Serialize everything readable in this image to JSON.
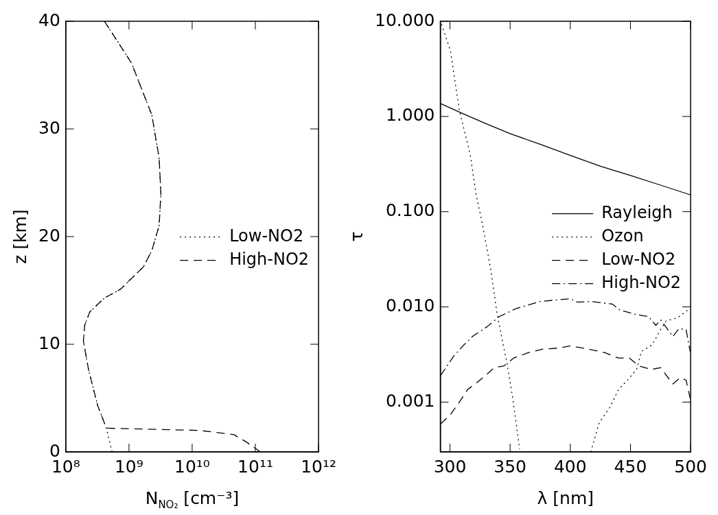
{
  "chart_data": [
    {
      "type": "line",
      "xlabel": "N$_{NO₂}$ [cm⁻³]",
      "ylabel": "z [km]",
      "log": "x",
      "xlim": [
        100000000,
        1000000000000
      ],
      "xticks": [
        {
          "value": 100000000,
          "label": "10⁸"
        },
        {
          "value": 1000000000,
          "label": "10⁹"
        },
        {
          "value": 10000000000,
          "label": "10¹⁰"
        },
        {
          "value": 100000000000,
          "label": "10¹¹"
        },
        {
          "value": 1000000000000,
          "label": "10¹²"
        }
      ],
      "ylim": [
        0,
        40
      ],
      "yticks": [
        0,
        10,
        20,
        30,
        40
      ],
      "grid": false,
      "legend": "right",
      "series": [
        {
          "name": "Low-NO2",
          "color": "#000000",
          "line_style": "dotted",
          "x": [
            410000000,
            1100000000,
            2300000000,
            3000000000,
            3200000000,
            3000000000,
            2300000000,
            1700000000,
            730000000,
            410000000,
            240000000,
            200000000,
            190000000,
            230000000,
            320000000,
            440000000,
            540000000
          ],
          "values": [
            40,
            36.1,
            31.3,
            27.3,
            24,
            21,
            18.7,
            17.2,
            15.1,
            14.3,
            13,
            11.8,
            10.3,
            7.6,
            4.3,
            2.2,
            0
          ]
        },
        {
          "name": "High-NO2",
          "color": "#000000",
          "line_style": "dashed",
          "x": [
            410000000,
            1100000000,
            2300000000,
            3000000000,
            3200000000,
            3000000000,
            2300000000,
            1700000000,
            730000000,
            410000000,
            240000000,
            200000000,
            190000000,
            230000000,
            320000000,
            440000000,
            13000000000,
            46000000000,
            73000000000,
            120000000000
          ],
          "values": [
            40,
            36.1,
            31.3,
            27.3,
            24,
            21,
            18.7,
            17.2,
            15.1,
            14.3,
            13,
            11.8,
            10.3,
            7.6,
            4.3,
            2.2,
            2,
            1.6,
            0.9,
            0
          ]
        }
      ]
    },
    {
      "type": "line",
      "xlabel": "λ [nm]",
      "ylabel": "τ",
      "log": "y",
      "xlim": [
        292,
        500
      ],
      "xticks": [
        300,
        350,
        400,
        450,
        500
      ],
      "ylim": [
        0.0003,
        10
      ],
      "yticks": [
        {
          "value": 10,
          "label": "10.000"
        },
        {
          "value": 1,
          "label": "1.000"
        },
        {
          "value": 0.1,
          "label": "0.100"
        },
        {
          "value": 0.01,
          "label": "0.010"
        },
        {
          "value": 0.001,
          "label": "0.001"
        }
      ],
      "grid": false,
      "legend": "right",
      "series": [
        {
          "name": "Rayleigh",
          "color": "#000000",
          "line_style": "solid",
          "x": [
            292,
            310,
            330,
            350,
            375,
            400,
            425,
            450,
            475,
            500
          ],
          "values": [
            1.37,
            1.08,
            0.84,
            0.66,
            0.51,
            0.39,
            0.3,
            0.24,
            0.19,
            0.15
          ]
        },
        {
          "name": "Ozon",
          "color": "#000000",
          "line_style": "dotted",
          "x": [
            293,
            300.4,
            307.8,
            316.8,
            321.8,
            326.8,
            333.5,
            338.9,
            343.9,
            347.3,
            351.9,
            357.9,
            390,
            417,
            424.1,
            433.1,
            440.1,
            447.1,
            455.1,
            459.1,
            468.1,
            475.1,
            479.6,
            489.2,
            499.2
          ],
          "values": [
            9.3,
            4.9,
            1.16,
            0.4,
            0.15,
            0.076,
            0.0265,
            0.0089,
            0.0042,
            0.0026,
            0.00116,
            0.00032,
            null,
            0.0003,
            0.00061,
            0.00089,
            0.00136,
            0.00168,
            0.0022,
            0.0034,
            0.004,
            0.0058,
            0.0071,
            0.0077,
            0.0096
          ]
        },
        {
          "name": "Low-NO2",
          "color": "#000000",
          "line_style": "dashed",
          "x": [
            292.2,
            300.8,
            307.8,
            314.8,
            320.8,
            328.9,
            336.9,
            344.9,
            352.9,
            364.9,
            377,
            391,
            400,
            415,
            429,
            440,
            449.1,
            457.1,
            467.1,
            475.1,
            485.2,
            491.2,
            496.2,
            499.6
          ],
          "values": [
            0.00059,
            0.00075,
            0.001,
            0.00136,
            0.00155,
            0.00187,
            0.0023,
            0.0024,
            0.0029,
            0.0033,
            0.0036,
            0.0037,
            0.0039,
            0.0036,
            0.0033,
            0.0029,
            0.0029,
            0.0024,
            0.0022,
            0.0023,
            0.00155,
            0.0018,
            0.0017,
            0.0011
          ]
        },
        {
          "name": "High-NO2",
          "color": "#000000",
          "line_style": "dashdot",
          "x": [
            292.2,
            302.8,
            310.8,
            318.8,
            330.9,
            340.9,
            354.9,
            374.9,
            391,
            400,
            406,
            417,
            435,
            441.1,
            453.1,
            465.1,
            471.1,
            475.1,
            485.2,
            490.2,
            496.2,
            499.6
          ],
          "values": [
            0.0019,
            0.003,
            0.0039,
            0.0049,
            0.0062,
            0.0079,
            0.0096,
            0.0114,
            0.0119,
            0.0122,
            0.0112,
            0.0114,
            0.0107,
            0.0093,
            0.0084,
            0.0079,
            0.0064,
            0.0073,
            0.0049,
            0.0059,
            0.0058,
            0.0034
          ]
        }
      ]
    }
  ]
}
